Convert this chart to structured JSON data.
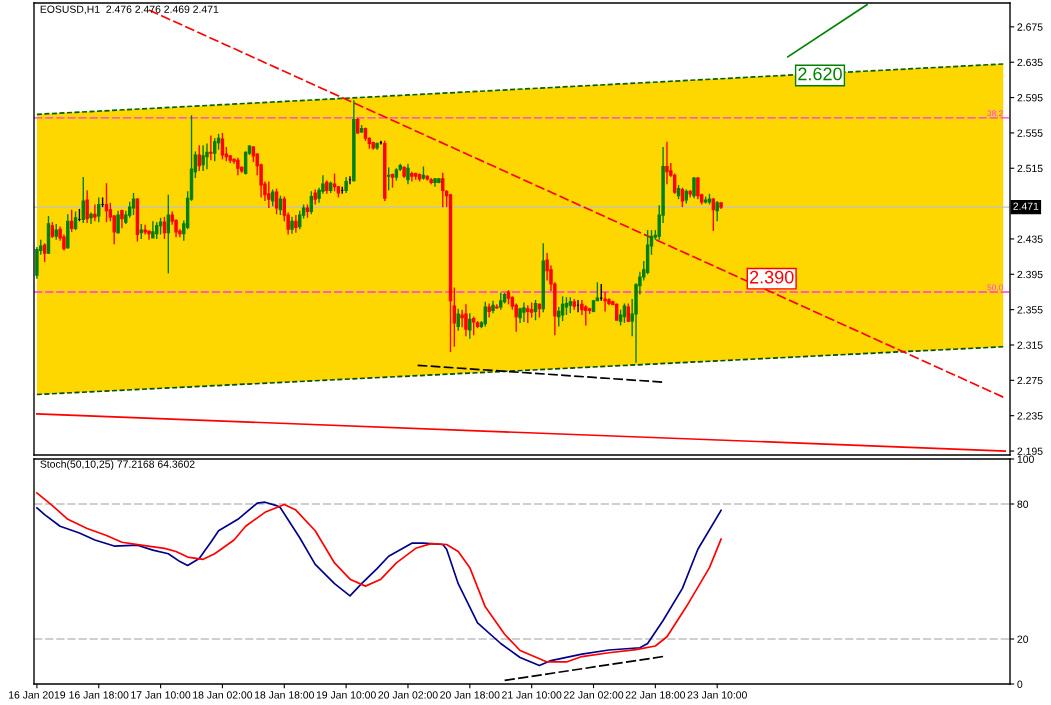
{
  "chart_data": [
    {
      "type": "candlestick",
      "title": "EOSUSD,H1  2.476 2.476 2.469 2.471",
      "x": [
        "2019-01-16T02:00",
        "2019-01-16T03:00",
        "2019-01-16T04:00",
        "2019-01-16T05:00",
        "2019-01-16T06:00",
        "2019-01-16T07:00",
        "2019-01-16T08:00",
        "2019-01-16T09:00",
        "2019-01-16T10:00",
        "2019-01-16T11:00",
        "2019-01-16T12:00",
        "2019-01-16T13:00",
        "2019-01-16T14:00",
        "2019-01-16T15:00",
        "2019-01-16T16:00",
        "2019-01-16T17:00",
        "2019-01-16T18:00",
        "2019-01-16T19:00",
        "2019-01-16T20:00",
        "2019-01-16T21:00",
        "2019-01-16T22:00",
        "2019-01-16T23:00",
        "2019-01-17T00:00",
        "2019-01-17T01:00",
        "2019-01-17T02:00",
        "2019-01-17T03:00",
        "2019-01-17T04:00",
        "2019-01-17T05:00",
        "2019-01-17T06:00",
        "2019-01-17T07:00",
        "2019-01-17T08:00",
        "2019-01-17T09:00",
        "2019-01-17T10:00",
        "2019-01-17T11:00",
        "2019-01-17T12:00",
        "2019-01-17T13:00",
        "2019-01-17T14:00",
        "2019-01-17T15:00",
        "2019-01-17T16:00",
        "2019-01-17T17:00",
        "2019-01-17T18:00",
        "2019-01-17T19:00",
        "2019-01-17T20:00",
        "2019-01-17T21:00",
        "2019-01-17T22:00",
        "2019-01-17T23:00",
        "2019-01-18T00:00",
        "2019-01-18T01:00",
        "2019-01-18T02:00",
        "2019-01-18T03:00",
        "2019-01-18T04:00",
        "2019-01-18T05:00",
        "2019-01-18T06:00",
        "2019-01-18T07:00",
        "2019-01-18T08:00",
        "2019-01-18T09:00",
        "2019-01-18T10:00",
        "2019-01-18T11:00",
        "2019-01-18T12:00",
        "2019-01-18T13:00",
        "2019-01-18T14:00",
        "2019-01-18T15:00",
        "2019-01-18T16:00",
        "2019-01-18T17:00",
        "2019-01-18T18:00",
        "2019-01-18T19:00",
        "2019-01-18T20:00",
        "2019-01-18T21:00",
        "2019-01-18T22:00",
        "2019-01-18T23:00",
        "2019-01-19T00:00",
        "2019-01-19T01:00",
        "2019-01-19T02:00",
        "2019-01-19T03:00",
        "2019-01-19T04:00",
        "2019-01-19T05:00",
        "2019-01-19T06:00",
        "2019-01-19T07:00",
        "2019-01-19T08:00",
        "2019-01-19T09:00",
        "2019-01-19T10:00",
        "2019-01-19T11:00",
        "2019-01-19T12:00",
        "2019-01-19T13:00",
        "2019-01-19T14:00",
        "2019-01-19T15:00",
        "2019-01-19T16:00",
        "2019-01-19T17:00",
        "2019-01-19T18:00",
        "2019-01-19T19:00",
        "2019-01-19T20:00",
        "2019-01-19T21:00",
        "2019-01-19T22:00",
        "2019-01-19T23:00",
        "2019-01-20T00:00",
        "2019-01-20T01:00",
        "2019-01-20T02:00",
        "2019-01-20T03:00",
        "2019-01-20T04:00",
        "2019-01-20T05:00",
        "2019-01-20T06:00",
        "2019-01-20T07:00",
        "2019-01-20T08:00",
        "2019-01-20T09:00",
        "2019-01-20T10:00",
        "2019-01-20T11:00",
        "2019-01-20T12:00",
        "2019-01-20T13:00",
        "2019-01-20T14:00",
        "2019-01-20T15:00",
        "2019-01-20T16:00",
        "2019-01-20T17:00",
        "2019-01-20T18:00",
        "2019-01-20T19:00",
        "2019-01-20T20:00",
        "2019-01-20T21:00",
        "2019-01-20T22:00",
        "2019-01-20T23:00",
        "2019-01-21T00:00",
        "2019-01-21T01:00",
        "2019-01-21T02:00",
        "2019-01-21T03:00",
        "2019-01-21T04:00",
        "2019-01-21T05:00",
        "2019-01-21T06:00",
        "2019-01-21T07:00",
        "2019-01-21T08:00",
        "2019-01-21T09:00",
        "2019-01-21T10:00",
        "2019-01-21T11:00",
        "2019-01-21T12:00",
        "2019-01-21T13:00",
        "2019-01-21T14:00",
        "2019-01-21T15:00",
        "2019-01-21T16:00",
        "2019-01-21T17:00",
        "2019-01-21T18:00",
        "2019-01-21T19:00",
        "2019-01-21T20:00",
        "2019-01-21T21:00",
        "2019-01-21T22:00",
        "2019-01-21T23:00",
        "2019-01-22T00:00",
        "2019-01-22T01:00",
        "2019-01-22T02:00",
        "2019-01-22T03:00",
        "2019-01-22T04:00",
        "2019-01-22T05:00",
        "2019-01-22T06:00",
        "2019-01-22T07:00",
        "2019-01-22T08:00",
        "2019-01-22T09:00",
        "2019-01-22T10:00",
        "2019-01-22T11:00",
        "2019-01-22T12:00",
        "2019-01-22T13:00",
        "2019-01-22T14:00",
        "2019-01-22T15:00",
        "2019-01-22T16:00",
        "2019-01-22T17:00",
        "2019-01-22T18:00",
        "2019-01-22T19:00",
        "2019-01-22T20:00",
        "2019-01-22T21:00",
        "2019-01-22T22:00",
        "2019-01-22T23:00",
        "2019-01-23T00:00",
        "2019-01-23T01:00",
        "2019-01-23T02:00",
        "2019-01-23T03:00",
        "2019-01-23T04:00",
        "2019-01-23T05:00",
        "2019-01-23T06:00",
        "2019-01-23T07:00",
        "2019-01-23T08:00",
        "2019-01-23T09:00",
        "2019-01-23T10:00",
        "2019-01-23T11:00"
      ],
      "ohlc": [
        [
          2.394,
          2.426,
          2.39,
          2.423
        ],
        [
          2.422,
          2.434,
          2.417,
          2.427
        ],
        [
          2.428,
          2.43,
          2.409,
          2.419
        ],
        [
          2.419,
          2.461,
          2.418,
          2.452
        ],
        [
          2.45,
          2.454,
          2.436,
          2.438
        ],
        [
          2.438,
          2.452,
          2.434,
          2.445
        ],
        [
          2.446,
          2.449,
          2.433,
          2.436
        ],
        [
          2.437,
          2.44,
          2.422,
          2.424
        ],
        [
          2.425,
          2.463,
          2.424,
          2.455
        ],
        [
          2.455,
          2.468,
          2.443,
          2.447
        ],
        [
          2.447,
          2.466,
          2.445,
          2.459
        ],
        [
          2.457,
          2.469,
          2.455,
          2.457
        ],
        [
          2.457,
          2.505,
          2.453,
          2.478
        ],
        [
          2.479,
          2.49,
          2.453,
          2.458
        ],
        [
          2.459,
          2.465,
          2.452,
          2.463
        ],
        [
          2.463,
          2.474,
          2.455,
          2.46
        ],
        [
          2.461,
          2.482,
          2.454,
          2.474
        ],
        [
          2.474,
          2.482,
          2.471,
          2.474
        ],
        [
          2.474,
          2.498,
          2.454,
          2.467
        ],
        [
          2.468,
          2.476,
          2.455,
          2.46
        ],
        [
          2.461,
          2.462,
          2.429,
          2.443
        ],
        [
          2.442,
          2.467,
          2.441,
          2.462
        ],
        [
          2.467,
          2.468,
          2.447,
          2.458
        ],
        [
          2.454,
          2.467,
          2.452,
          2.462
        ],
        [
          2.462,
          2.477,
          2.459,
          2.471
        ],
        [
          2.47,
          2.487,
          2.462,
          2.48
        ],
        [
          2.48,
          2.481,
          2.432,
          2.44
        ],
        [
          2.442,
          2.452,
          2.435,
          2.445
        ],
        [
          2.445,
          2.451,
          2.44,
          2.443
        ],
        [
          2.444,
          2.444,
          2.434,
          2.441
        ],
        [
          2.436,
          2.455,
          2.436,
          2.443
        ],
        [
          2.441,
          2.454,
          2.435,
          2.45
        ],
        [
          2.45,
          2.459,
          2.44,
          2.454
        ],
        [
          2.454,
          2.46,
          2.435,
          2.442
        ],
        [
          2.442,
          2.485,
          2.396,
          2.462
        ],
        [
          2.462,
          2.466,
          2.451,
          2.455
        ],
        [
          2.456,
          2.457,
          2.437,
          2.443
        ],
        [
          2.444,
          2.446,
          2.437,
          2.441
        ],
        [
          2.441,
          2.456,
          2.433,
          2.452
        ],
        [
          2.448,
          2.489,
          2.446,
          2.481
        ],
        [
          2.48,
          2.575,
          2.478,
          2.514
        ],
        [
          2.511,
          2.534,
          2.504,
          2.53
        ],
        [
          2.53,
          2.541,
          2.512,
          2.518
        ],
        [
          2.519,
          2.541,
          2.512,
          2.529
        ],
        [
          2.528,
          2.543,
          2.514,
          2.533
        ],
        [
          2.533,
          2.552,
          2.524,
          2.532
        ],
        [
          2.532,
          2.549,
          2.523,
          2.545
        ],
        [
          2.544,
          2.554,
          2.536,
          2.549
        ],
        [
          2.548,
          2.555,
          2.525,
          2.53
        ],
        [
          2.531,
          2.539,
          2.523,
          2.528
        ],
        [
          2.529,
          2.53,
          2.521,
          2.524
        ],
        [
          2.525,
          2.526,
          2.52,
          2.523
        ],
        [
          2.524,
          2.527,
          2.507,
          2.515
        ],
        [
          2.516,
          2.517,
          2.51,
          2.512
        ],
        [
          2.509,
          2.534,
          2.508,
          2.533
        ],
        [
          2.532,
          2.541,
          2.53,
          2.54
        ],
        [
          2.539,
          2.54,
          2.522,
          2.529
        ],
        [
          2.531,
          2.532,
          2.507,
          2.518
        ],
        [
          2.519,
          2.52,
          2.482,
          2.496
        ],
        [
          2.497,
          2.5,
          2.478,
          2.485
        ],
        [
          2.486,
          2.5,
          2.47,
          2.48
        ],
        [
          2.478,
          2.491,
          2.472,
          2.488
        ],
        [
          2.488,
          2.492,
          2.463,
          2.47
        ],
        [
          2.468,
          2.484,
          2.462,
          2.48
        ],
        [
          2.48,
          2.483,
          2.455,
          2.462
        ],
        [
          2.462,
          2.465,
          2.44,
          2.446
        ],
        [
          2.446,
          2.46,
          2.441,
          2.455
        ],
        [
          2.455,
          2.462,
          2.442,
          2.448
        ],
        [
          2.449,
          2.467,
          2.446,
          2.462
        ],
        [
          2.462,
          2.474,
          2.458,
          2.47
        ],
        [
          2.47,
          2.474,
          2.459,
          2.466
        ],
        [
          2.466,
          2.489,
          2.463,
          2.483
        ],
        [
          2.487,
          2.491,
          2.474,
          2.48
        ],
        [
          2.481,
          2.493,
          2.476,
          2.49
        ],
        [
          2.489,
          2.507,
          2.486,
          2.497
        ],
        [
          2.499,
          2.501,
          2.486,
          2.49
        ],
        [
          2.49,
          2.5,
          2.487,
          2.498
        ],
        [
          2.497,
          2.509,
          2.489,
          2.494
        ],
        [
          2.494,
          2.495,
          2.482,
          2.487
        ],
        [
          2.49,
          2.494,
          2.486,
          2.49
        ],
        [
          2.49,
          2.505,
          2.487,
          2.5
        ],
        [
          2.502,
          2.506,
          2.497,
          2.502
        ],
        [
          2.501,
          2.592,
          2.5,
          2.57
        ],
        [
          2.57,
          2.572,
          2.554,
          2.555
        ],
        [
          2.556,
          2.564,
          2.555,
          2.56
        ],
        [
          2.56,
          2.561,
          2.546,
          2.549
        ],
        [
          2.549,
          2.55,
          2.537,
          2.543
        ],
        [
          2.544,
          2.545,
          2.536,
          2.538
        ],
        [
          2.538,
          2.544,
          2.536,
          2.543
        ],
        [
          2.544,
          2.546,
          2.542,
          2.544
        ],
        [
          2.543,
          2.546,
          2.478,
          2.481
        ],
        [
          2.506,
          2.516,
          2.49,
          2.507
        ],
        [
          2.508,
          2.509,
          2.493,
          2.505
        ],
        [
          2.505,
          2.515,
          2.501,
          2.513
        ],
        [
          2.514,
          2.52,
          2.512,
          2.518
        ],
        [
          2.516,
          2.517,
          2.504,
          2.506
        ],
        [
          2.502,
          2.52,
          2.497,
          2.515
        ],
        [
          2.509,
          2.511,
          2.5,
          2.506
        ],
        [
          2.509,
          2.51,
          2.502,
          2.506
        ],
        [
          2.508,
          2.509,
          2.5,
          2.503
        ],
        [
          2.504,
          2.517,
          2.502,
          2.507
        ],
        [
          2.506,
          2.507,
          2.501,
          2.503
        ],
        [
          2.502,
          2.504,
          2.497,
          2.499
        ],
        [
          2.499,
          2.504,
          2.494,
          2.503
        ],
        [
          2.499,
          2.504,
          2.498,
          2.503
        ],
        [
          2.503,
          2.51,
          2.471,
          2.49
        ],
        [
          2.489,
          2.49,
          2.471,
          2.484
        ],
        [
          2.485,
          2.486,
          2.307,
          2.365
        ],
        [
          2.359,
          2.38,
          2.313,
          2.34
        ],
        [
          2.336,
          2.356,
          2.331,
          2.35
        ],
        [
          2.349,
          2.355,
          2.335,
          2.346
        ],
        [
          2.35,
          2.361,
          2.325,
          2.333
        ],
        [
          2.332,
          2.351,
          2.322,
          2.344
        ],
        [
          2.345,
          2.347,
          2.326,
          2.341
        ],
        [
          2.34,
          2.342,
          2.334,
          2.336
        ],
        [
          2.336,
          2.342,
          2.334,
          2.34
        ],
        [
          2.339,
          2.364,
          2.336,
          2.358
        ],
        [
          2.358,
          2.362,
          2.346,
          2.353
        ],
        [
          2.354,
          2.365,
          2.351,
          2.36
        ],
        [
          2.358,
          2.361,
          2.356,
          2.357
        ],
        [
          2.358,
          2.374,
          2.355,
          2.365
        ],
        [
          2.364,
          2.374,
          2.362,
          2.372
        ],
        [
          2.375,
          2.377,
          2.361,
          2.368
        ],
        [
          2.369,
          2.37,
          2.355,
          2.359
        ],
        [
          2.36,
          2.362,
          2.33,
          2.347
        ],
        [
          2.346,
          2.357,
          2.34,
          2.356
        ],
        [
          2.352,
          2.363,
          2.341,
          2.357
        ],
        [
          2.356,
          2.36,
          2.34,
          2.353
        ],
        [
          2.355,
          2.363,
          2.346,
          2.352
        ],
        [
          2.353,
          2.366,
          2.343,
          2.362
        ],
        [
          2.361,
          2.362,
          2.346,
          2.356
        ],
        [
          2.356,
          2.43,
          2.352,
          2.41
        ],
        [
          2.411,
          2.419,
          2.388,
          2.399
        ],
        [
          2.4,
          2.405,
          2.376,
          2.384
        ],
        [
          2.384,
          2.386,
          2.326,
          2.348
        ],
        [
          2.347,
          2.358,
          2.336,
          2.353
        ],
        [
          2.349,
          2.37,
          2.342,
          2.361
        ],
        [
          2.358,
          2.369,
          2.349,
          2.362
        ],
        [
          2.36,
          2.369,
          2.351,
          2.364
        ],
        [
          2.364,
          2.367,
          2.355,
          2.359
        ],
        [
          2.36,
          2.366,
          2.352,
          2.36
        ],
        [
          2.361,
          2.366,
          2.349,
          2.355
        ],
        [
          2.358,
          2.36,
          2.337,
          2.354
        ],
        [
          2.356,
          2.357,
          2.35,
          2.354
        ],
        [
          2.353,
          2.366,
          2.352,
          2.365
        ],
        [
          2.365,
          2.386,
          2.365,
          2.368
        ],
        [
          2.368,
          2.384,
          2.365,
          2.368
        ],
        [
          2.367,
          2.375,
          2.353,
          2.365
        ],
        [
          2.366,
          2.368,
          2.36,
          2.362
        ],
        [
          2.364,
          2.365,
          2.36,
          2.361
        ],
        [
          2.361,
          2.362,
          2.343,
          2.343
        ],
        [
          2.342,
          2.355,
          2.337,
          2.349
        ],
        [
          2.347,
          2.362,
          2.34,
          2.359
        ],
        [
          2.358,
          2.362,
          2.341,
          2.342
        ],
        [
          2.342,
          2.367,
          2.325,
          2.35
        ],
        [
          2.35,
          2.385,
          2.295,
          2.383
        ],
        [
          2.382,
          2.398,
          2.372,
          2.392
        ],
        [
          2.392,
          2.41,
          2.388,
          2.4
        ],
        [
          2.397,
          2.445,
          2.395,
          2.428
        ],
        [
          2.427,
          2.445,
          2.417,
          2.438
        ],
        [
          2.437,
          2.445,
          2.434,
          2.439
        ],
        [
          2.438,
          2.473,
          2.434,
          2.462
        ],
        [
          2.462,
          2.539,
          2.453,
          2.517
        ],
        [
          2.517,
          2.545,
          2.497,
          2.511
        ],
        [
          2.512,
          2.521,
          2.505,
          2.507
        ],
        [
          2.507,
          2.509,
          2.486,
          2.488
        ],
        [
          2.484,
          2.496,
          2.48,
          2.492
        ],
        [
          2.491,
          2.493,
          2.471,
          2.478
        ],
        [
          2.479,
          2.491,
          2.475,
          2.489
        ],
        [
          2.489,
          2.49,
          2.482,
          2.486
        ],
        [
          2.484,
          2.505,
          2.481,
          2.504
        ],
        [
          2.504,
          2.505,
          2.48,
          2.484
        ],
        [
          2.485,
          2.486,
          2.474,
          2.477
        ],
        [
          2.477,
          2.483,
          2.475,
          2.479
        ],
        [
          2.477,
          2.486,
          2.474,
          2.48
        ],
        [
          2.48,
          2.481,
          2.444,
          2.468
        ],
        [
          2.467,
          2.478,
          2.455,
          2.476
        ],
        [
          2.476,
          2.476,
          2.469,
          2.471
        ]
      ],
      "colors": [
        "#008000",
        "#008000",
        "#ff0000",
        "#008000",
        "#ff0000",
        "#008000",
        "#ff0000",
        "#ff0000",
        "#008000",
        "#ff0000",
        "#008000",
        "#000000",
        "#008000",
        "#ff0000",
        "#008000",
        "#ff0000",
        "#008000",
        "#000000",
        "#ff0000",
        "#ff0000",
        "#ff0000",
        "#008000",
        "#ff0000",
        "#008000",
        "#008000",
        "#008000",
        "#ff0000",
        "#008000",
        "#ff0000",
        "#ff0000",
        "#008000",
        "#008000",
        "#008000",
        "#ff0000",
        "#008000",
        "#ff0000",
        "#ff0000",
        "#ff0000",
        "#008000",
        "#008000",
        "#008000",
        "#008000",
        "#ff0000",
        "#008000",
        "#008000",
        "#ff0000",
        "#008000",
        "#008000",
        "#ff0000",
        "#ff0000",
        "#ff0000",
        "#ff0000",
        "#ff0000",
        "#ff0000",
        "#008000",
        "#008000",
        "#ff0000",
        "#ff0000",
        "#ff0000",
        "#ff0000",
        "#ff0000",
        "#008000",
        "#ff0000",
        "#008000",
        "#ff0000",
        "#ff0000",
        "#008000",
        "#ff0000",
        "#008000",
        "#008000",
        "#ff0000",
        "#008000",
        "#ff0000",
        "#008000",
        "#008000",
        "#ff0000",
        "#008000",
        "#ff0000",
        "#ff0000",
        "#000000",
        "#008000",
        "#000000",
        "#008000",
        "#ff0000",
        "#008000",
        "#ff0000",
        "#ff0000",
        "#ff0000",
        "#008000",
        "#000000",
        "#ff0000",
        "#008000",
        "#ff0000",
        "#008000",
        "#008000",
        "#ff0000",
        "#008000",
        "#ff0000",
        "#ff0000",
        "#ff0000",
        "#008000",
        "#ff0000",
        "#ff0000",
        "#008000",
        "#008000",
        "#ff0000",
        "#ff0000",
        "#ff0000",
        "#ff0000",
        "#008000",
        "#ff0000",
        "#ff0000",
        "#008000",
        "#ff0000",
        "#ff0000",
        "#008000",
        "#008000",
        "#ff0000",
        "#008000",
        "#ff0000",
        "#008000",
        "#008000",
        "#ff0000",
        "#ff0000",
        "#ff0000",
        "#008000",
        "#008000",
        "#ff0000",
        "#ff0000",
        "#008000",
        "#ff0000",
        "#008000",
        "#ff0000",
        "#ff0000",
        "#ff0000",
        "#008000",
        "#008000",
        "#008000",
        "#008000",
        "#ff0000",
        "#000000",
        "#ff0000",
        "#ff0000",
        "#ff0000",
        "#008000",
        "#008000",
        "#000000",
        "#ff0000",
        "#ff0000",
        "#ff0000",
        "#ff0000",
        "#008000",
        "#008000",
        "#ff0000",
        "#008000",
        "#008000",
        "#008000",
        "#008000",
        "#008000",
        "#008000",
        "#008000",
        "#008000",
        "#008000",
        "#ff0000",
        "#ff0000",
        "#ff0000",
        "#008000",
        "#ff0000",
        "#008000",
        "#ff0000",
        "#008000",
        "#ff0000",
        "#ff0000",
        "#008000",
        "#008000",
        "#ff0000",
        "#008000",
        "#ff0000"
      ],
      "series": [
        {
          "type": "line",
          "x": [
            "2019-01-16T02:00",
            "2019-01-26T12:00"
          ],
          "values": [
            2.576,
            2.633
          ],
          "upper": [
            2.576,
            2.633
          ],
          "lower": [
            2.259,
            2.313
          ],
          "color": "#006400",
          "line_style": "dotted"
        },
        {
          "type": "line",
          "x": [
            "2019-01-16T02:00",
            "2019-01-26T12:00"
          ],
          "values": [
            2.259,
            2.313
          ],
          "color": "#005000",
          "line_style": "dotted"
        },
        {
          "type": "line",
          "x": [
            "2019-01-17T07:00",
            "2019-01-26T12:00"
          ],
          "values": [
            2.694,
            2.256
          ],
          "color": "#ff0000",
          "line_style": "dashed"
        },
        {
          "type": "line",
          "x": [
            "2019-01-16T02:00",
            "2019-01-26T12:30"
          ],
          "values": [
            2.237,
            2.195
          ],
          "color": "#ff0000",
          "line_style": "solid"
        },
        {
          "type": "line",
          "x": [
            "2019-01-24T04:15",
            "2019-01-25T00:45"
          ],
          "values": [
            2.641,
            2.7
          ],
          "color": "#008000",
          "line_style": "solid"
        },
        {
          "type": "line",
          "x": [
            "2019-01-20T04:30",
            "2019-01-22T19:45"
          ],
          "values": [
            2.292,
            2.273
          ],
          "color": "#000000",
          "line_style": "dashed"
        }
      ],
      "ref_lines": [
        {
          "axis": "y",
          "value": 2.471,
          "label": "2.471",
          "color": "#c0c0c0",
          "line_style": "solid"
        },
        {
          "axis": "y",
          "value": 2.572,
          "color": "#ff33ff",
          "line_style": "dashed"
        },
        {
          "axis": "y",
          "value": 2.375,
          "color": "#ff33ff",
          "line_style": "dashed"
        }
      ],
      "annotations": [
        {
          "text": "2.620",
          "x": "2019-01-24T06:45",
          "y": 2.62
        },
        {
          "text": "2.390",
          "x": "2019-01-23T18:15",
          "y": 2.39
        },
        {
          "text": "38.2",
          "x": "2019-01-26T12:00",
          "y": 2.572
        },
        {
          "text": "50.0",
          "x": "2019-01-26T12:00",
          "y": 2.375
        }
      ],
      "xlim": [
        "2019-01-16T01:15",
        "2019-01-26T13:45"
      ],
      "ylim": [
        2.1905,
        2.702
      ],
      "yticks": [
        2.195,
        2.235,
        2.275,
        2.315,
        2.355,
        2.395,
        2.435,
        2.515,
        2.555,
        2.595,
        2.635,
        2.675
      ],
      "tick_labels": "y",
      "grid": false
    },
    {
      "type": "line",
      "title": "Stoch(50,10,25) 77.2168 64.3602",
      "series": [
        {
          "color": "#00008b",
          "x": [
            "2019-01-16T02:00",
            "2019-01-16T04:00",
            "2019-01-16T08:00",
            "2019-01-16T13:00",
            "2019-01-16T17:00",
            "2019-01-16T22:00",
            "2019-01-17T04:00",
            "2019-01-17T08:00",
            "2019-01-17T12:00",
            "2019-01-17T15:00",
            "2019-01-17T17:00",
            "2019-01-17T20:00",
            "2019-01-17T23:00",
            "2019-01-18T01:00",
            "2019-01-18T06:00",
            "2019-01-18T11:00",
            "2019-01-18T13:00",
            "2019-01-18T16:00",
            "2019-01-18T17:00",
            "2019-01-18T22:00",
            "2019-01-19T02:00",
            "2019-01-19T07:00",
            "2019-01-19T11:00",
            "2019-01-19T14:00",
            "2019-01-19T18:00",
            "2019-01-19T21:00",
            "2019-01-20T03:00",
            "2019-01-20T06:00",
            "2019-01-20T11:00",
            "2019-01-20T12:00",
            "2019-01-20T15:00",
            "2019-01-20T20:00",
            "2019-01-21T02:00",
            "2019-01-21T07:00",
            "2019-01-21T12:00",
            "2019-01-21T15:00",
            "2019-01-21T23:00",
            "2019-01-22T06:00",
            "2019-01-22T14:00",
            "2019-01-22T16:00",
            "2019-01-22T20:00",
            "2019-01-23T01:00",
            "2019-01-23T05:00",
            "2019-01-23T11:00"
          ],
          "values": [
            78.3,
            75.3,
            70.1,
            67.1,
            64.0,
            61.3,
            61.7,
            59.5,
            57.9,
            54.4,
            52.7,
            55.8,
            63.0,
            68.1,
            73.2,
            80.4,
            80.8,
            79.3,
            78.3,
            65.0,
            53.2,
            44.6,
            39.2,
            44.6,
            51.3,
            56.8,
            62.6,
            62.6,
            62.0,
            59.9,
            44.6,
            27.2,
            18.0,
            11.8,
            8.2,
            10.4,
            13.3,
            15.1,
            16.1,
            18.0,
            28.2,
            42.5,
            59.9,
            77.2
          ]
        },
        {
          "color": "#ff0000",
          "x": [
            "2019-01-16T02:00",
            "2019-01-16T06:00",
            "2019-01-16T10:00",
            "2019-01-16T15:00",
            "2019-01-16T20:00",
            "2019-01-17T00:00",
            "2019-01-17T05:00",
            "2019-01-17T11:00",
            "2019-01-17T14:00",
            "2019-01-17T17:00",
            "2019-01-17T21:00",
            "2019-01-18T00:00",
            "2019-01-18T05:00",
            "2019-01-18T08:00",
            "2019-01-18T13:00",
            "2019-01-18T18:00",
            "2019-01-18T21:00",
            "2019-01-19T02:00",
            "2019-01-19T07:00",
            "2019-01-19T11:00",
            "2019-01-19T15:00",
            "2019-01-19T19:00",
            "2019-01-19T23:00",
            "2019-01-20T04:00",
            "2019-01-20T08:00",
            "2019-01-20T12:00",
            "2019-01-20T15:00",
            "2019-01-20T18:00",
            "2019-01-20T22:00",
            "2019-01-21T03:00",
            "2019-01-21T07:00",
            "2019-01-21T14:00",
            "2019-01-21T19:00",
            "2019-01-21T23:00",
            "2019-01-22T06:00",
            "2019-01-22T13:00",
            "2019-01-22T18:00",
            "2019-01-22T21:00",
            "2019-01-23T02:00",
            "2019-01-23T08:00",
            "2019-01-23T11:00"
          ],
          "values": [
            84.9,
            79.3,
            73.2,
            69.1,
            66.0,
            63.0,
            61.7,
            60.3,
            58.9,
            56.4,
            55.4,
            57.9,
            64.0,
            70.1,
            76.3,
            79.8,
            77.3,
            68.1,
            53.8,
            46.6,
            43.5,
            46.6,
            53.8,
            60.3,
            62.4,
            62.0,
            58.9,
            51.7,
            34.3,
            22.1,
            14.9,
            9.8,
            9.8,
            12.2,
            13.9,
            15.3,
            16.9,
            21.0,
            34.3,
            51.7,
            64.4
          ]
        },
        {
          "color": "#000000",
          "line_style": "dashed",
          "x": [
            "2019-01-21T03:00",
            "2019-01-22T20:00"
          ],
          "values": [
            1.6,
            12.2
          ]
        }
      ],
      "ref_lines": [
        {
          "axis": "y",
          "value": 20,
          "color": "#c0c0c0",
          "line_style": "dashed"
        },
        {
          "axis": "y",
          "value": 80,
          "color": "#c0c0c0",
          "line_style": "dashed"
        }
      ],
      "xlim": [
        "2019-01-16T01:15",
        "2019-01-26T13:45"
      ],
      "xticks": [
        {
          "value": "2019-01-16T02:00",
          "label": "16 Jan 2019"
        },
        {
          "value": "2019-01-16T18:00",
          "label": "16 Jan 18:00"
        },
        {
          "value": "2019-01-17T10:00",
          "label": "17 Jan 10:00"
        },
        {
          "value": "2019-01-18T02:00",
          "label": "18 Jan 02:00"
        },
        {
          "value": "2019-01-18T18:00",
          "label": "18 Jan 18:00"
        },
        {
          "value": "2019-01-19T10:00",
          "label": "19 Jan 10:00"
        },
        {
          "value": "2019-01-20T02:00",
          "label": "20 Jan 02:00"
        },
        {
          "value": "2019-01-20T18:00",
          "label": "20 Jan 18:00"
        },
        {
          "value": "2019-01-21T10:00",
          "label": "21 Jan 10:00"
        },
        {
          "value": "2019-01-22T02:00",
          "label": "22 Jan 02:00"
        },
        {
          "value": "2019-01-22T18:00",
          "label": "22 Jan 18:00"
        },
        {
          "value": "2019-01-23T10:00",
          "label": "23 Jan 10:00"
        }
      ],
      "ylim": [
        0,
        100
      ],
      "yticks": [
        0,
        20,
        80,
        100
      ],
      "grid": false
    }
  ]
}
